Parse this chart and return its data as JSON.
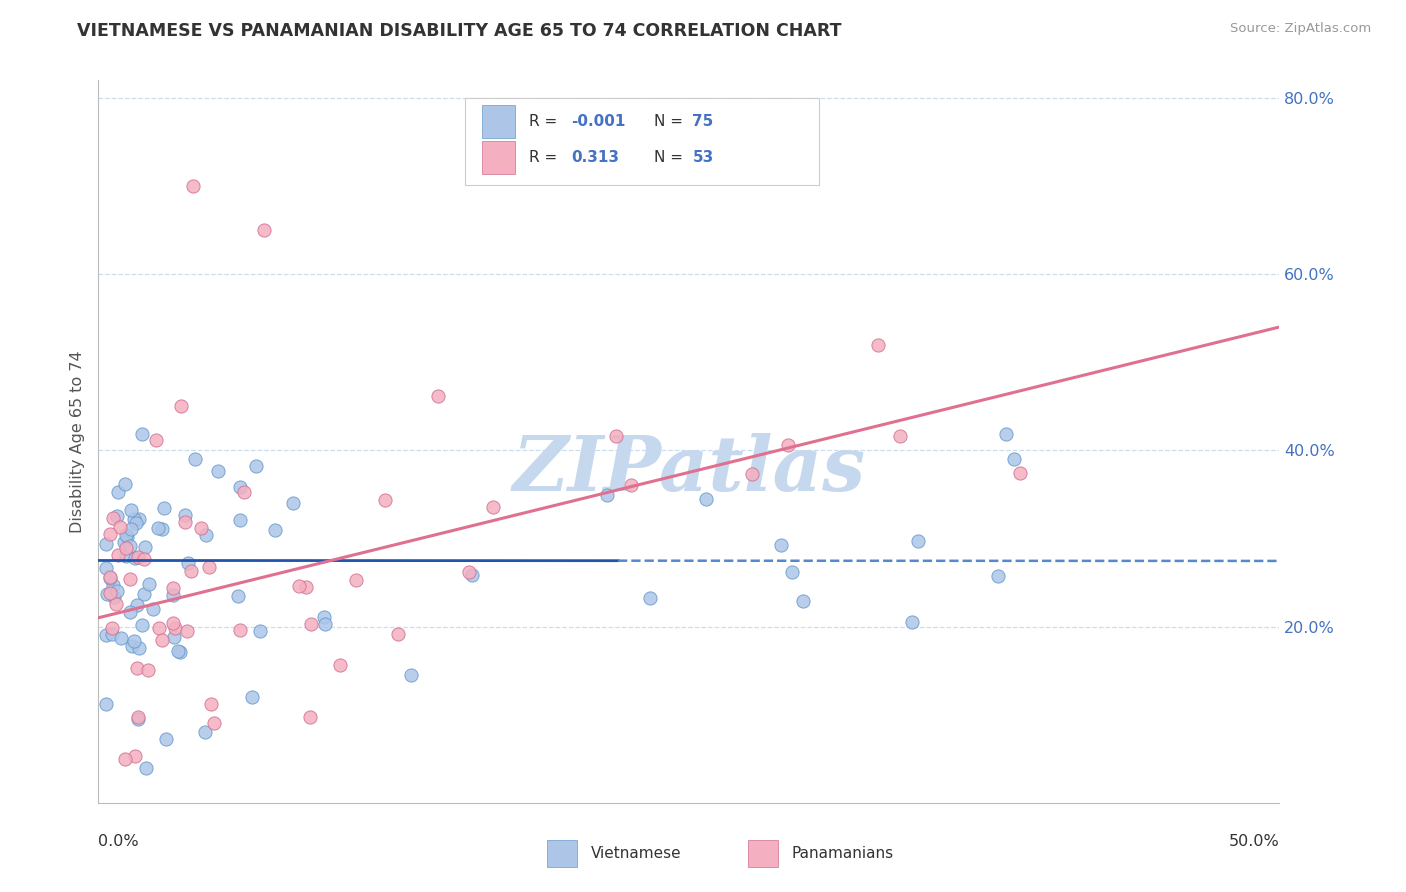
{
  "title": "VIETNAMESE VS PANAMANIAN DISABILITY AGE 65 TO 74 CORRELATION CHART",
  "source": "Source: ZipAtlas.com",
  "ylabel": "Disability Age 65 to 74",
  "xlim": [
    0.0,
    50.0
  ],
  "ylim": [
    0.0,
    82.0
  ],
  "color_viet": "#adc6e8",
  "color_pana": "#f4afc0",
  "edge_viet": "#6699cc",
  "edge_pana": "#d07090",
  "line_color_viet_solid": "#2255aa",
  "line_color_viet_dash": "#5588cc",
  "line_color_pana": "#e07090",
  "watermark": "ZIPatlas",
  "watermark_color": "#c5d8ed",
  "background_color": "#ffffff",
  "grid_color": "#c8dff0",
  "viet_reg_y_at_0": 27.5,
  "viet_reg_y_at_50": 27.45,
  "viet_solid_end_x": 22.0,
  "pana_reg_x0": 0.0,
  "pana_reg_y0": 21.0,
  "pana_reg_x1": 50.0,
  "pana_reg_y1": 54.0
}
